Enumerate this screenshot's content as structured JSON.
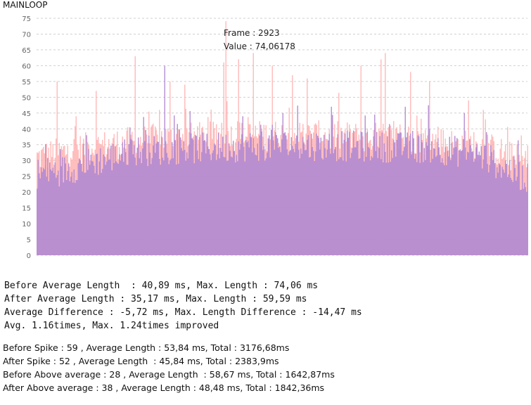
{
  "chart_title": "MAINLOOP",
  "tooltip": {
    "frame_line": "Frame : 2923",
    "value_line": "Value : 74,06178"
  },
  "chart_data": {
    "type": "bar",
    "title": "MAINLOOP",
    "ylim": [
      0,
      75
    ],
    "yticks": [
      0,
      5,
      10,
      15,
      20,
      25,
      30,
      35,
      40,
      45,
      50,
      55,
      60,
      65,
      70,
      75
    ],
    "grid": true,
    "series": [
      {
        "color": "#ffb3b3",
        "profile": [
          [
            0,
            31
          ],
          [
            0.1,
            34
          ],
          [
            0.25,
            37
          ],
          [
            0.5,
            38
          ],
          [
            0.75,
            37
          ],
          [
            0.92,
            34
          ],
          [
            1,
            29
          ]
        ],
        "spikes": [
          [
            0.04,
            55
          ],
          [
            0.08,
            44
          ],
          [
            0.12,
            52
          ],
          [
            0.2,
            63
          ],
          [
            0.27,
            55
          ],
          [
            0.3,
            54
          ],
          [
            0.38,
            61
          ],
          [
            0.384,
            74.06
          ],
          [
            0.41,
            62
          ],
          [
            0.44,
            64
          ],
          [
            0.48,
            60
          ],
          [
            0.52,
            57
          ],
          [
            0.55,
            56
          ],
          [
            0.66,
            60
          ],
          [
            0.7,
            62
          ],
          [
            0.71,
            64
          ],
          [
            0.76,
            58
          ],
          [
            0.8,
            55
          ],
          [
            0.88,
            49
          ],
          [
            0.91,
            46
          ]
        ]
      },
      {
        "color": "#b38ad2",
        "profile": [
          [
            0,
            26
          ],
          [
            0.06,
            27
          ],
          [
            0.1,
            29
          ],
          [
            0.2,
            33
          ],
          [
            0.5,
            35
          ],
          [
            0.8,
            34
          ],
          [
            0.9,
            32
          ],
          [
            0.95,
            28
          ],
          [
            1,
            24
          ]
        ],
        "spikes": [
          [
            0.1,
            38
          ],
          [
            0.26,
            60
          ],
          [
            0.42,
            44
          ],
          [
            0.5,
            45
          ],
          [
            0.6,
            47
          ],
          [
            0.75,
            47
          ],
          [
            0.87,
            45
          ]
        ]
      }
    ]
  },
  "stats": {
    "line1": "Before Average Length  : 40,89 ms, Max. Length : 74,06 ms",
    "line2": "After Average Length : 35,17 ms, Max. Length : 59,59 ms",
    "line3": "Average Difference : -5,72 ms, Max. Length Difference : -14,47 ms",
    "line4": "Avg. 1.16times, Max. 1.24times improved",
    "line5": "Before Spike : 59 , Average Length : 53,84 ms, Total : 3176,68ms",
    "line6": "After Spike : 52 , Average Length  : 45,84 ms, Total : 2383,9ms",
    "line7": "Before Above average : 28 , Average Length  : 58,67 ms, Total : 1642,87ms",
    "line8": "After Above average : 38 , Average Length : 48,48 ms, Total : 1842,36ms"
  }
}
